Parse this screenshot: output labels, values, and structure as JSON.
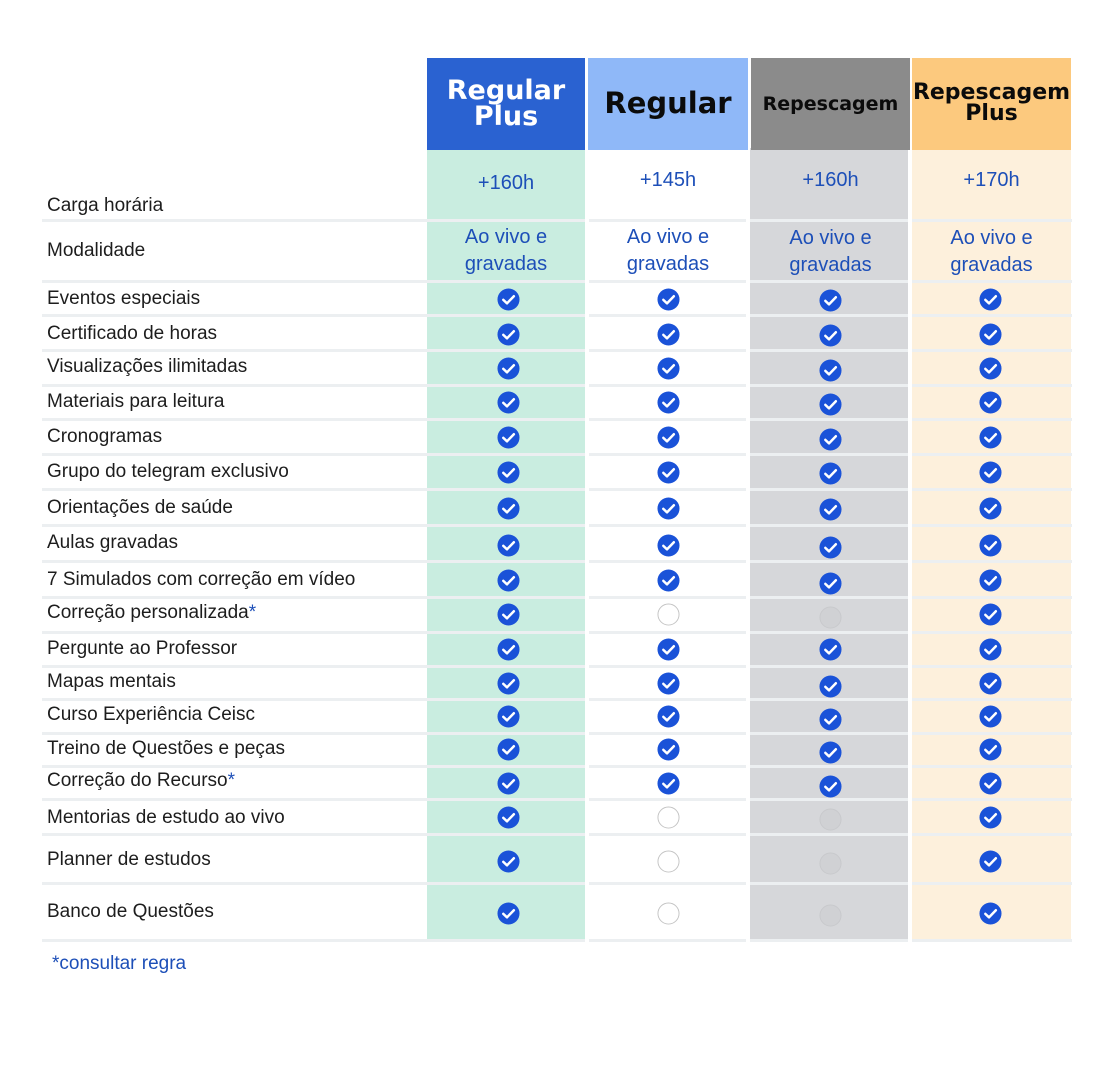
{
  "plans": [
    {
      "id": "regular-plus",
      "title_line1": "Regular",
      "title_line2": "Plus",
      "header_bg": "#2a62d1",
      "header_color": "#ffffff",
      "column_bg": "#c9ede0",
      "header_size": 27,
      "hours": "+160h",
      "modalidade_l1": "Ao vivo e",
      "modalidade_l2": "gravadas"
    },
    {
      "id": "regular",
      "title_line1": "Regular",
      "title_line2": "",
      "header_bg": "#8fb8f8",
      "header_color": "#0b0b0b",
      "column_bg": "#ffffff",
      "header_size": 29,
      "hours": "+145h",
      "modalidade_l1": "Ao vivo e",
      "modalidade_l2": "gravadas"
    },
    {
      "id": "repescagem",
      "title_line1": "Repescagem",
      "title_line2": "",
      "header_bg": "#8b8b8b",
      "header_color": "#0b0b0b",
      "column_bg": "#d6d7da",
      "header_size": 19,
      "hours": "+160h",
      "modalidade_l1": "Ao vivo e",
      "modalidade_l2": "gravadas"
    },
    {
      "id": "repescagem-plus",
      "title_line1": "Repescagem",
      "title_line2": "Plus",
      "header_bg": "#fcc97e",
      "header_color": "#0b0b0b",
      "column_bg": "#fdf0dc",
      "header_size": 22,
      "hours": "+170h",
      "modalidade_l1": "Ao vivo e",
      "modalidade_l2": "gravadas"
    }
  ],
  "rows": {
    "carga_horaria": "Carga horária",
    "modalidade": "Modalidade"
  },
  "features": [
    {
      "label": "Eventos especiais",
      "star": "",
      "included": [
        true,
        true,
        true,
        true
      ]
    },
    {
      "label": "Certificado de horas",
      "star": "",
      "included": [
        true,
        true,
        true,
        true
      ]
    },
    {
      "label": "Visualizações ilimitadas",
      "star": "",
      "included": [
        true,
        true,
        true,
        true
      ]
    },
    {
      "label": "Materiais para leitura",
      "star": "",
      "included": [
        true,
        true,
        true,
        true
      ]
    },
    {
      "label": "Cronogramas",
      "star": "",
      "included": [
        true,
        true,
        true,
        true
      ]
    },
    {
      "label": "Grupo do telegram exclusivo",
      "star": "",
      "included": [
        true,
        true,
        true,
        true
      ]
    },
    {
      "label": "Orientações de saúde",
      "star": "",
      "included": [
        true,
        true,
        true,
        true
      ]
    },
    {
      "label": "Aulas gravadas",
      "star": "",
      "included": [
        true,
        true,
        true,
        true
      ]
    },
    {
      "label": "7 Simulados com correção em vídeo",
      "star": "",
      "included": [
        true,
        true,
        true,
        true
      ]
    },
    {
      "label": "Correção personalizada",
      "star": "*",
      "included": [
        true,
        false,
        false,
        true
      ]
    },
    {
      "label": "Pergunte ao Professor",
      "star": "",
      "included": [
        true,
        true,
        true,
        true
      ]
    },
    {
      "label": "Mapas mentais",
      "star": "",
      "included": [
        true,
        true,
        true,
        true
      ]
    },
    {
      "label": "Curso Experiência Ceisc",
      "star": "",
      "included": [
        true,
        true,
        true,
        true
      ]
    },
    {
      "label": "Treino de Questões e peças",
      "star": "",
      "included": [
        true,
        true,
        true,
        true
      ]
    },
    {
      "label": "Correção do Recurso",
      "star": "*",
      "included": [
        true,
        true,
        true,
        true
      ]
    },
    {
      "label": "Mentorias de estudo ao vivo",
      "star": "",
      "included": [
        true,
        false,
        false,
        true
      ]
    },
    {
      "label": "Planner de estudos",
      "star": "",
      "included": [
        true,
        false,
        false,
        true
      ]
    },
    {
      "label": "Banco de Questões",
      "star": "",
      "included": [
        true,
        false,
        false,
        true
      ]
    }
  ],
  "footnote": "*consultar regra",
  "colors": {
    "check": "#1a52d8",
    "label_text": "#1d1d1d",
    "accent_text": "#1d4fb8"
  },
  "icons": {
    "included": "check-circle-icon",
    "not_included": "empty-circle-icon"
  }
}
